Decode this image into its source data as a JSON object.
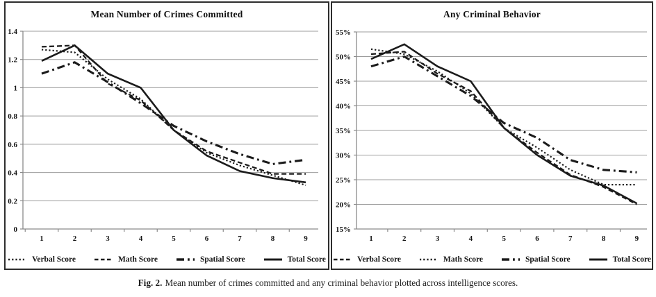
{
  "figure": {
    "caption_label": "Fig. 2.",
    "caption_text": "Mean number of crimes committed and any criminal behavior plotted across intelligence scores."
  },
  "colors": {
    "line": "#1b1b1b",
    "grid": "#9c9c9c",
    "axis": "#8a8a8a",
    "text": "#141414",
    "panel_border": "#2d2d2d",
    "background": "#ffffff"
  },
  "chart_data": [
    {
      "type": "line",
      "title": "Mean Number of Crimes Committed",
      "xlabel": "",
      "ylabel": "",
      "categories": [
        "1",
        "2",
        "3",
        "4",
        "5",
        "6",
        "7",
        "8",
        "9"
      ],
      "ylim": [
        0,
        1.4
      ],
      "y_step": 0.2,
      "y_tick_labels": [
        "1.4",
        "1.2",
        "1",
        "0.8",
        "0.6",
        "0.4",
        "0.2",
        "0"
      ],
      "grid": true,
      "legend_position": "bottom",
      "series": [
        {
          "name": "Verbal Score",
          "line_style": "dotted",
          "values": [
            1.27,
            1.25,
            1.06,
            0.92,
            0.7,
            0.54,
            0.45,
            0.38,
            0.31
          ]
        },
        {
          "name": "Math Score",
          "line_style": "dashed",
          "values": [
            1.29,
            1.3,
            1.03,
            0.91,
            0.7,
            0.55,
            0.47,
            0.39,
            0.39
          ]
        },
        {
          "name": "Spatial Score",
          "line_style": "dashdot",
          "values": [
            1.1,
            1.18,
            1.04,
            0.89,
            0.73,
            0.62,
            0.53,
            0.46,
            0.49
          ]
        },
        {
          "name": "Total Score",
          "line_style": "solid",
          "values": [
            1.19,
            1.3,
            1.1,
            1.0,
            0.7,
            0.52,
            0.41,
            0.36,
            0.33
          ]
        }
      ]
    },
    {
      "type": "line",
      "title": "Any Criminal Behavior",
      "xlabel": "",
      "ylabel": "",
      "categories": [
        "1",
        "2",
        "3",
        "4",
        "5",
        "6",
        "7",
        "8",
        "9"
      ],
      "ylim": [
        15,
        55
      ],
      "y_step": 5,
      "y_tick_labels": [
        "55%",
        "50%",
        "45%",
        "40%",
        "35%",
        "30%",
        "25%",
        "20%",
        "15%"
      ],
      "grid": true,
      "legend_position": "bottom",
      "series": [
        {
          "name": "Verbal Score",
          "line_style": "dashed",
          "values": [
            50.5,
            51.0,
            46.5,
            43.0,
            35.5,
            30.5,
            26.0,
            23.5,
            20.0
          ]
        },
        {
          "name": "Math Score",
          "line_style": "dotted",
          "values": [
            51.5,
            50.5,
            47.0,
            42.5,
            35.5,
            31.5,
            27.0,
            24.0,
            24.0
          ]
        },
        {
          "name": "Spatial Score",
          "line_style": "dashdot",
          "values": [
            48.0,
            50.0,
            46.0,
            42.0,
            36.5,
            33.5,
            29.0,
            27.0,
            26.5
          ]
        },
        {
          "name": "Total Score",
          "line_style": "solid",
          "values": [
            49.5,
            52.5,
            48.0,
            45.0,
            35.5,
            30.0,
            25.8,
            23.8,
            20.2
          ]
        }
      ]
    }
  ]
}
